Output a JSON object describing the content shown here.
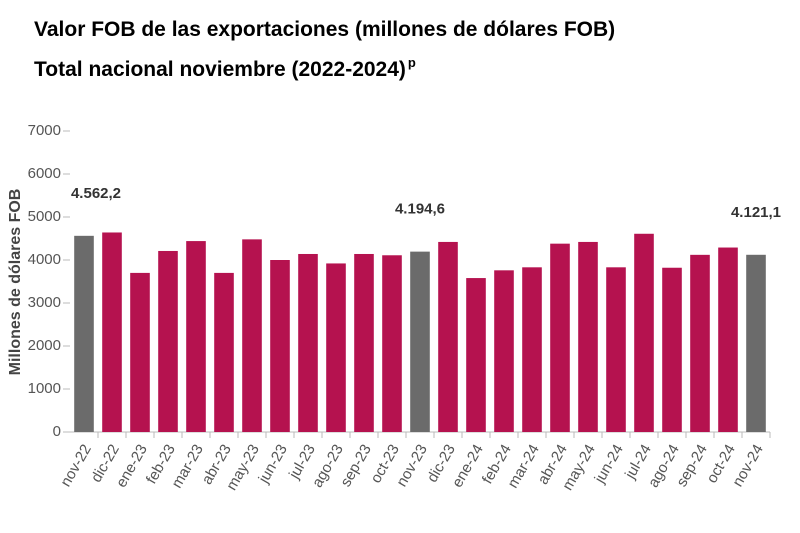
{
  "chart_data": {
    "type": "bar",
    "title": [
      "Valor FOB de las exportaciones (millones de dólares FOB)",
      "Total nacional noviembre (2022-2024)"
    ],
    "title_superscript": "p",
    "y_label": "Millones de dólares FOB",
    "categories": [
      "nov-22",
      "dic-22",
      "ene-23",
      "feb-23",
      "mar-23",
      "abr-23",
      "may-23",
      "jun-23",
      "jul-23",
      "ago-23",
      "sep-23",
      "oct-23",
      "nov-23",
      "dic-23",
      "ene-24",
      "feb-24",
      "mar-24",
      "abr-24",
      "may-24",
      "jun-24",
      "jul-24",
      "ago-24",
      "sep-24",
      "oct-24",
      "nov-24"
    ],
    "values": [
      4562.2,
      4640,
      3700,
      4210,
      4440,
      3700,
      4480,
      4000,
      4140,
      3920,
      4140,
      4110,
      4194.6,
      4420,
      3580,
      3760,
      3830,
      4380,
      4420,
      3830,
      4610,
      3820,
      4120,
      4290,
      4121.1
    ],
    "value_labels": [
      "4.562,2",
      null,
      null,
      null,
      null,
      null,
      null,
      null,
      null,
      null,
      null,
      null,
      "4.194,6",
      null,
      null,
      null,
      null,
      null,
      null,
      null,
      null,
      null,
      null,
      null,
      "4.121,1"
    ],
    "colors": [
      "#6b6b6b",
      "#b5124f",
      "#b5124f",
      "#b5124f",
      "#b5124f",
      "#b5124f",
      "#b5124f",
      "#b5124f",
      "#b5124f",
      "#b5124f",
      "#b5124f",
      "#b5124f",
      "#6b6b6b",
      "#b5124f",
      "#b5124f",
      "#b5124f",
      "#b5124f",
      "#b5124f",
      "#b5124f",
      "#b5124f",
      "#b5124f",
      "#b5124f",
      "#b5124f",
      "#b5124f",
      "#6b6b6b"
    ],
    "ylim": [
      0,
      7000
    ],
    "yticks": [
      0,
      1000,
      2000,
      3000,
      4000,
      5000,
      6000,
      7000
    ],
    "grid": false
  }
}
